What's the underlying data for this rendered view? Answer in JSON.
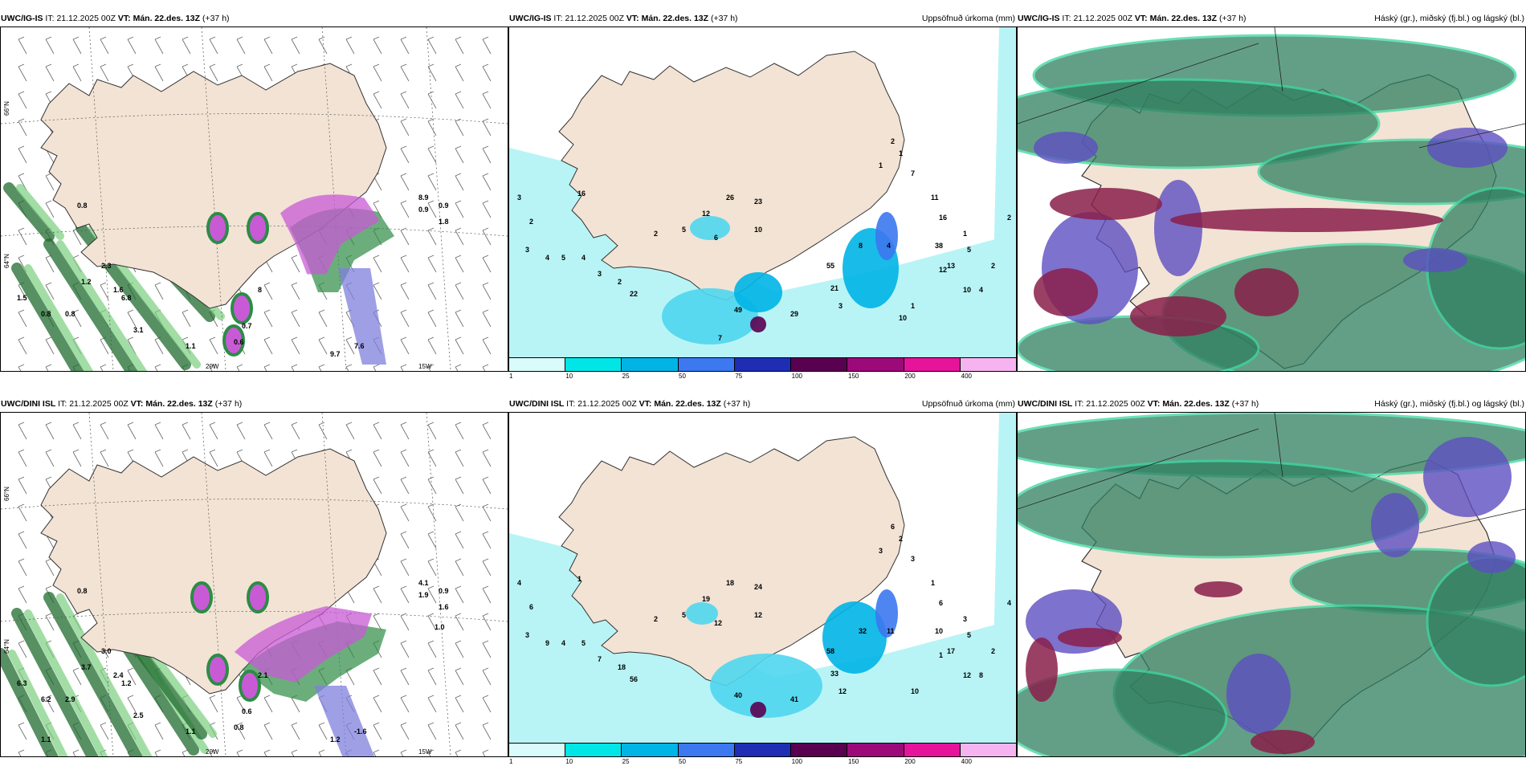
{
  "rows": [
    {
      "model": "UWC/IG-IS",
      "it_label": "IT:",
      "it_value": "21.12.2025 00Z",
      "vt_label": "VT:",
      "vt_value": "Mán. 22.des. 13Z",
      "lead": "(+37 h)",
      "panel2_title": "Uppsöfnuð úrkoma (mm)",
      "panel3_title": "Háský (gr.), miðský (fj.bl.) og lágský (bl.)"
    },
    {
      "model": "UWC/DINI ISL",
      "it_label": "IT:",
      "it_value": "21.12.2025 00Z",
      "vt_label": "VT:",
      "vt_value": "Mán. 22.des. 13Z",
      "lead": "(+37 h)",
      "panel2_title": "Uppsöfnuð úrkoma (mm)",
      "panel3_title": "Háský (gr.), miðský (fj.bl.) og lágský (bl.)"
    }
  ],
  "axis_labels": {
    "lat_66": "66°N",
    "lat_64": "64°N",
    "lon_20": "20W",
    "lon_15": "15W"
  },
  "colorbar": {
    "ticks": [
      "1",
      "10",
      "25",
      "50",
      "75",
      "100",
      "150",
      "200",
      "400"
    ],
    "colors": [
      "#d9fbfb",
      "#00e6e6",
      "#00b4e6",
      "#3c78f0",
      "#1e2db4",
      "#5a0050",
      "#9b0a78",
      "#e6149b",
      "#f5b4f0"
    ]
  },
  "colors": {
    "land": "#f2e3d5",
    "precip_light": "#b8f4f6",
    "precip_mid": "#4fd6ee",
    "sea_shade": "#2e7d5a",
    "purple": "#c85ad6",
    "cloud_high": "#2f7f5f",
    "cloud_mid": "#5c4fc0",
    "cloud_low": "#8a1f4a"
  },
  "panel1_values": {
    "row1": [
      "0.8",
      "2.3",
      "1.2",
      "1.6",
      "6.8",
      "3.1",
      "8",
      "9.7",
      "7.6",
      "8.9",
      "0.9",
      "1.5",
      "0.8",
      "0.8",
      "2.7",
      "1.1",
      "0.7",
      "0.6",
      "0.9",
      "1.8"
    ],
    "row2": [
      "0.8",
      "3.0",
      "3.7",
      "2.4",
      "1.2",
      "2.5",
      "2.1",
      "1.2",
      "-1.6",
      "4.1",
      "1.9",
      "6.3",
      "6.2",
      "2.9",
      "1.8",
      "1.1",
      "0.6",
      "0.8",
      "0.9",
      "1.6",
      "1.0",
      "1.1"
    ]
  },
  "panel2_values": {
    "row1": [
      "3",
      "2",
      "3",
      "4",
      "5",
      "4",
      "3",
      "16",
      "12",
      "26",
      "23",
      "10",
      "6",
      "5",
      "2",
      "2",
      "22",
      "49",
      "29",
      "21",
      "55",
      "8",
      "4",
      "3",
      "1",
      "2",
      "1",
      "1",
      "7",
      "11",
      "16",
      "38",
      "13",
      "10",
      "4",
      "2",
      "2",
      "1",
      "5",
      "12",
      "10",
      "7"
    ],
    "row2": [
      "4",
      "6",
      "3",
      "9",
      "4",
      "5",
      "7",
      "1",
      "19",
      "18",
      "24",
      "12",
      "12",
      "5",
      "2",
      "18",
      "56",
      "40",
      "41",
      "33",
      "58",
      "32",
      "11",
      "12",
      "10",
      "6",
      "3",
      "2",
      "3",
      "1",
      "6",
      "10",
      "17",
      "12",
      "8",
      "2",
      "4",
      "3",
      "5",
      "1"
    ]
  }
}
